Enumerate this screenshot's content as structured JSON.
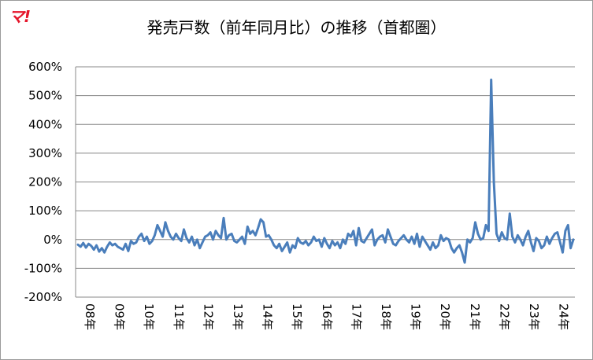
{
  "brand": {
    "logo_text": "マ!"
  },
  "chart_data": {
    "type": "line",
    "title": "発売戸数（前年同月比）の推移（首都圏）",
    "xlabel": "",
    "ylabel": "",
    "ylim": [
      -200,
      600
    ],
    "y_ticks": [
      -200,
      -100,
      0,
      100,
      200,
      300,
      400,
      500,
      600
    ],
    "y_tick_labels": [
      "-200%",
      "-100%",
      "0%",
      "100%",
      "200%",
      "300%",
      "400%",
      "500%",
      "600%"
    ],
    "x_tick_labels": [
      "08年",
      "09年",
      "10年",
      "11年",
      "12年",
      "13年",
      "14年",
      "15年",
      "16年",
      "17年",
      "18年",
      "19年",
      "20年",
      "21年",
      "22年",
      "23年",
      "24年"
    ],
    "grid": "horizontal",
    "legend": "none",
    "line_color": "#4a7ebb",
    "series": [
      {
        "values": [
          -18,
          -25,
          -12,
          -28,
          -15,
          -22,
          -35,
          -20,
          -42,
          -30,
          -45,
          -25,
          -10,
          -20,
          -15,
          -25,
          -30,
          -35,
          -15,
          -40,
          -5,
          -15,
          -10,
          10,
          20,
          -5,
          10,
          -15,
          -5,
          15,
          50,
          30,
          10,
          60,
          30,
          10,
          0,
          20,
          5,
          -5,
          35,
          5,
          -10,
          10,
          -20,
          0,
          -30,
          -10,
          10,
          15,
          25,
          0,
          30,
          15,
          5,
          75,
          0,
          15,
          20,
          -5,
          -10,
          0,
          10,
          -15,
          45,
          20,
          30,
          15,
          40,
          70,
          60,
          10,
          15,
          0,
          -20,
          -30,
          -15,
          -40,
          -25,
          -10,
          -45,
          -20,
          -30,
          5,
          -10,
          -15,
          -5,
          -20,
          -10,
          10,
          -5,
          0,
          -25,
          5,
          -15,
          -30,
          -5,
          -20,
          -10,
          -30,
          0,
          -15,
          20,
          10,
          30,
          -20,
          40,
          -5,
          -10,
          5,
          20,
          35,
          -20,
          0,
          10,
          15,
          -10,
          35,
          10,
          -15,
          -20,
          -5,
          5,
          15,
          0,
          -10,
          10,
          -15,
          20,
          -25,
          10,
          -5,
          -20,
          -35,
          -10,
          -30,
          -20,
          15,
          -5,
          5,
          0,
          -30,
          -45,
          -30,
          -20,
          -45,
          -80,
          0,
          -10,
          5,
          60,
          20,
          0,
          5,
          50,
          30,
          555,
          200,
          20,
          -5,
          25,
          5,
          0,
          90,
          10,
          -10,
          15,
          0,
          -20,
          10,
          30,
          -10,
          -40,
          5,
          -5,
          -30,
          -20,
          10,
          -15,
          5,
          20,
          25,
          -10,
          -45,
          30,
          50,
          -30,
          0
        ]
      }
    ]
  }
}
